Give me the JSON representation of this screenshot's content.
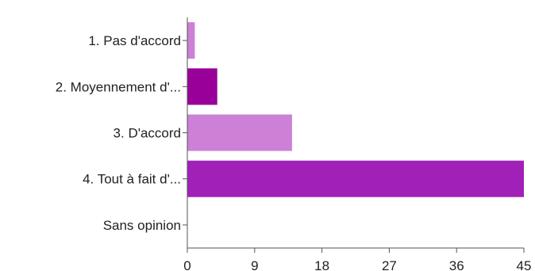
{
  "chart_data": {
    "type": "bar",
    "orientation": "horizontal",
    "title": "",
    "xlabel": "",
    "ylabel": "",
    "categories": [
      "1. Pas d'accord",
      "2. Moyennement d'...",
      "3. D'accord",
      "4. Tout à fait d'...",
      "Sans opinion"
    ],
    "values": [
      1,
      4,
      14,
      45,
      0
    ],
    "xlim": [
      0,
      45
    ],
    "xticks": [
      0,
      9,
      18,
      27,
      36,
      45
    ],
    "grid": false,
    "legend": "none",
    "colors": [
      "#cc80d6",
      "#990099",
      "#cc80d6",
      "#a020b8",
      "#cc80d6"
    ]
  }
}
